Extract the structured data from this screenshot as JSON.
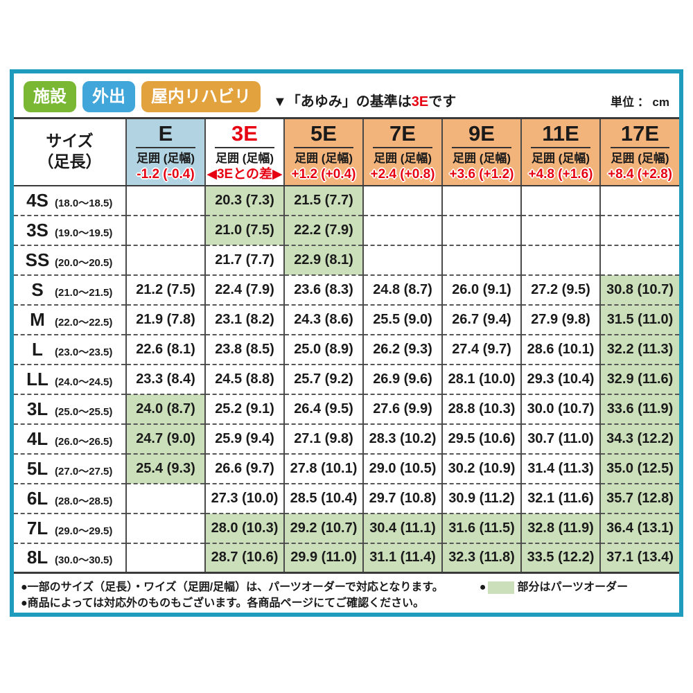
{
  "colors": {
    "frame_teal": "#1f9bbd",
    "accent_red": "#e60012",
    "parts_order_green": "#cbdfba",
    "width_header_blue": "#b2d3e2",
    "width_header_orange": "#f3b47c",
    "badge_green": "#7ab833",
    "badge_blue": "#41a6d9",
    "badge_orange": "#e2a23e"
  },
  "header": {
    "subtitle_prefix": "▼「あゆみ」の基準は",
    "subtitle_em": "3E",
    "subtitle_suffix": "です",
    "unit_label": "単位 ： cm"
  },
  "badges": [
    {
      "label": "施設",
      "color": "#7ab833"
    },
    {
      "label": "外出",
      "color": "#41a6d9"
    },
    {
      "label": "屋内リハビリ",
      "color": "#e2a23e"
    }
  ],
  "chart_data": {
    "type": "table",
    "title": "▼「あゆみ」の基準は3Eです",
    "unit": "cm",
    "size_header": [
      "サイズ",
      "（足長）"
    ],
    "sub_label": "足囲 (足幅)",
    "green_legend_meaning": "パーツオーダー対応",
    "columns": [
      {
        "id": "E",
        "label": "E",
        "label_color": "#1a1a1a",
        "header_bg": "#b2d3e2",
        "diff": "-1.2 (-0.4)"
      },
      {
        "id": "3E",
        "label": "3E",
        "label_color": "#e60012",
        "header_bg": "#ffffff",
        "diff": "◀3Eとの差▶"
      },
      {
        "id": "5E",
        "label": "5E",
        "label_color": "#1a1a1a",
        "header_bg": "#f3b47c",
        "diff": "+1.2 (+0.4)"
      },
      {
        "id": "7E",
        "label": "7E",
        "label_color": "#1a1a1a",
        "header_bg": "#f3b47c",
        "diff": "+2.4 (+0.8)"
      },
      {
        "id": "9E",
        "label": "9E",
        "label_color": "#1a1a1a",
        "header_bg": "#f3b47c",
        "diff": "+3.6 (+1.2)"
      },
      {
        "id": "11E",
        "label": "11E",
        "label_color": "#1a1a1a",
        "header_bg": "#f3b47c",
        "diff": "+4.8 (+1.6)"
      },
      {
        "id": "17E",
        "label": "17E",
        "label_color": "#1a1a1a",
        "header_bg": "#f3b47c",
        "diff": "+8.4 (+2.8)"
      }
    ],
    "rows": [
      {
        "size": "4S",
        "range": "(18.0〜18.5)",
        "cells": [
          {
            "text": "",
            "green": false
          },
          {
            "text": "20.3 (7.3)",
            "green": true
          },
          {
            "text": "21.5 (7.7)",
            "green": true
          },
          {
            "text": "",
            "green": false
          },
          {
            "text": "",
            "green": false
          },
          {
            "text": "",
            "green": false
          },
          {
            "text": "",
            "green": false
          }
        ]
      },
      {
        "size": "3S",
        "range": "(19.0〜19.5)",
        "cells": [
          {
            "text": "",
            "green": false
          },
          {
            "text": "21.0 (7.5)",
            "green": true
          },
          {
            "text": "22.2 (7.9)",
            "green": true
          },
          {
            "text": "",
            "green": false
          },
          {
            "text": "",
            "green": false
          },
          {
            "text": "",
            "green": false
          },
          {
            "text": "",
            "green": false
          }
        ]
      },
      {
        "size": "SS",
        "range": "(20.0〜20.5)",
        "cells": [
          {
            "text": "",
            "green": false
          },
          {
            "text": "21.7 (7.7)",
            "green": false
          },
          {
            "text": "22.9 (8.1)",
            "green": true
          },
          {
            "text": "",
            "green": false
          },
          {
            "text": "",
            "green": false
          },
          {
            "text": "",
            "green": false
          },
          {
            "text": "",
            "green": false
          }
        ]
      },
      {
        "size": "S",
        "range": "(21.0〜21.5)",
        "cells": [
          {
            "text": "21.2 (7.5)",
            "green": false
          },
          {
            "text": "22.4 (7.9)",
            "green": false
          },
          {
            "text": "23.6 (8.3)",
            "green": false
          },
          {
            "text": "24.8 (8.7)",
            "green": false
          },
          {
            "text": "26.0 (9.1)",
            "green": false
          },
          {
            "text": "27.2 (9.5)",
            "green": false
          },
          {
            "text": "30.8 (10.7)",
            "green": true
          }
        ]
      },
      {
        "size": "M",
        "range": "(22.0〜22.5)",
        "cells": [
          {
            "text": "21.9 (7.8)",
            "green": false
          },
          {
            "text": "23.1 (8.2)",
            "green": false
          },
          {
            "text": "24.3 (8.6)",
            "green": false
          },
          {
            "text": "25.5 (9.0)",
            "green": false
          },
          {
            "text": "26.7 (9.4)",
            "green": false
          },
          {
            "text": "27.9 (9.8)",
            "green": false
          },
          {
            "text": "31.5 (11.0)",
            "green": true
          }
        ]
      },
      {
        "size": "L",
        "range": "(23.0〜23.5)",
        "cells": [
          {
            "text": "22.6 (8.1)",
            "green": false
          },
          {
            "text": "23.8 (8.5)",
            "green": false
          },
          {
            "text": "25.0 (8.9)",
            "green": false
          },
          {
            "text": "26.2 (9.3)",
            "green": false
          },
          {
            "text": "27.4 (9.7)",
            "green": false
          },
          {
            "text": "28.6 (10.1)",
            "green": false
          },
          {
            "text": "32.2 (11.3)",
            "green": true
          }
        ]
      },
      {
        "size": "LL",
        "range": "(24.0〜24.5)",
        "cells": [
          {
            "text": "23.3 (8.4)",
            "green": false
          },
          {
            "text": "24.5 (8.8)",
            "green": false
          },
          {
            "text": "25.7 (9.2)",
            "green": false
          },
          {
            "text": "26.9 (9.6)",
            "green": false
          },
          {
            "text": "28.1 (10.0)",
            "green": false
          },
          {
            "text": "29.3 (10.4)",
            "green": false
          },
          {
            "text": "32.9 (11.6)",
            "green": true
          }
        ]
      },
      {
        "size": "3L",
        "range": "(25.0〜25.5)",
        "cells": [
          {
            "text": "24.0 (8.7)",
            "green": true
          },
          {
            "text": "25.2 (9.1)",
            "green": false
          },
          {
            "text": "26.4 (9.5)",
            "green": false
          },
          {
            "text": "27.6 (9.9)",
            "green": false
          },
          {
            "text": "28.8 (10.3)",
            "green": false
          },
          {
            "text": "30.0 (10.7)",
            "green": false
          },
          {
            "text": "33.6 (11.9)",
            "green": true
          }
        ]
      },
      {
        "size": "4L",
        "range": "(26.0〜26.5)",
        "cells": [
          {
            "text": "24.7 (9.0)",
            "green": true
          },
          {
            "text": "25.9 (9.4)",
            "green": false
          },
          {
            "text": "27.1 (9.8)",
            "green": false
          },
          {
            "text": "28.3 (10.2)",
            "green": false
          },
          {
            "text": "29.5 (10.6)",
            "green": false
          },
          {
            "text": "30.7 (11.0)",
            "green": false
          },
          {
            "text": "34.3 (12.2)",
            "green": true
          }
        ]
      },
      {
        "size": "5L",
        "range": "(27.0〜27.5)",
        "cells": [
          {
            "text": "25.4 (9.3)",
            "green": true
          },
          {
            "text": "26.6 (9.7)",
            "green": false
          },
          {
            "text": "27.8 (10.1)",
            "green": false
          },
          {
            "text": "29.0 (10.5)",
            "green": false
          },
          {
            "text": "30.2 (10.9)",
            "green": false
          },
          {
            "text": "31.4 (11.3)",
            "green": false
          },
          {
            "text": "35.0 (12.5)",
            "green": true
          }
        ]
      },
      {
        "size": "6L",
        "range": "(28.0〜28.5)",
        "cells": [
          {
            "text": "",
            "green": false
          },
          {
            "text": "27.3 (10.0)",
            "green": false
          },
          {
            "text": "28.5 (10.4)",
            "green": false
          },
          {
            "text": "29.7 (10.8)",
            "green": false
          },
          {
            "text": "30.9 (11.2)",
            "green": false
          },
          {
            "text": "32.1 (11.6)",
            "green": false
          },
          {
            "text": "35.7 (12.8)",
            "green": true
          }
        ]
      },
      {
        "size": "7L",
        "range": "(29.0〜29.5)",
        "cells": [
          {
            "text": "",
            "green": false
          },
          {
            "text": "28.0 (10.3)",
            "green": true
          },
          {
            "text": "29.2 (10.7)",
            "green": true
          },
          {
            "text": "30.4 (11.1)",
            "green": true
          },
          {
            "text": "31.6 (11.5)",
            "green": true
          },
          {
            "text": "32.8 (11.9)",
            "green": true
          },
          {
            "text": "36.4 (13.1)",
            "green": true
          }
        ]
      },
      {
        "size": "8L",
        "range": "(30.0〜30.5)",
        "cells": [
          {
            "text": "",
            "green": false
          },
          {
            "text": "28.7 (10.6)",
            "green": true
          },
          {
            "text": "29.9 (11.0)",
            "green": true
          },
          {
            "text": "31.1 (11.4)",
            "green": true
          },
          {
            "text": "32.3 (11.8)",
            "green": true
          },
          {
            "text": "33.5 (12.2)",
            "green": true
          },
          {
            "text": "37.1 (13.4)",
            "green": true
          }
        ]
      }
    ]
  },
  "footer": {
    "note1": "●一部のサイズ（足長）・ワイズ（足囲/足幅）は、パーツオーダーで対応となります。",
    "legend_bullet": "●",
    "legend_text": "部分はパーツオーダー",
    "note2": "●商品によっては対応外のものもございます。各商品ページにてご確認ください。"
  }
}
